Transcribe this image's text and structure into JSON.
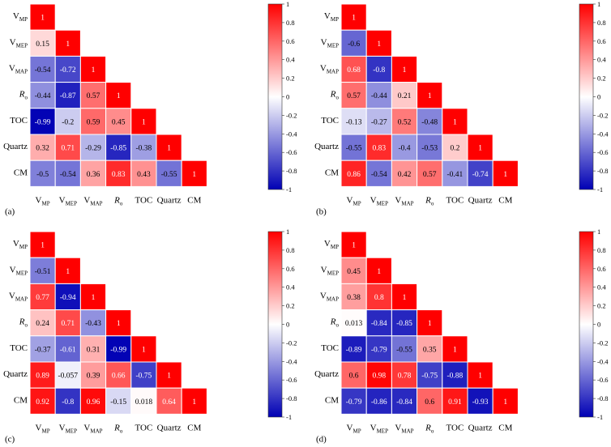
{
  "colors": {
    "neg": "#0000b4",
    "mid": "#ffffff",
    "pos": "#ff0000",
    "grid": "#ffffff"
  },
  "chart_data": [
    {
      "type": "heatmap",
      "panel_label": "(a)",
      "variables": [
        "V_MP",
        "V_MEP",
        "V_MAP",
        "R_o",
        "TOC",
        "Quartz",
        "CM"
      ],
      "matrix_lower": [
        [
          1
        ],
        [
          0.15,
          1
        ],
        [
          -0.54,
          -0.72,
          1
        ],
        [
          -0.44,
          -0.87,
          0.57,
          1
        ],
        [
          -0.99,
          -0.2,
          0.59,
          0.45,
          1
        ],
        [
          0.32,
          0.71,
          -0.29,
          -0.85,
          -0.38,
          1
        ],
        [
          -0.5,
          -0.54,
          0.36,
          0.83,
          0.43,
          -0.55,
          1
        ]
      ],
      "labels": [
        [
          "1"
        ],
        [
          "0.15",
          "1"
        ],
        [
          "-0.54",
          "-0.72",
          "1"
        ],
        [
          "-0.44",
          "-0.87",
          "0.57",
          "1"
        ],
        [
          "-0.99",
          "-0.2",
          "0.59",
          "0.45",
          "1"
        ],
        [
          "0.32",
          "0.71",
          "-0.29",
          "-0.85",
          "-0.38",
          "1"
        ],
        [
          "-0.5",
          "-0.54",
          "0.36",
          "0.83",
          "0.43",
          "-0.55",
          "1"
        ]
      ],
      "colorbar": {
        "range": [
          -1,
          1
        ],
        "ticks": [
          "1",
          "0.8",
          "0.6",
          "0.4",
          "0.2",
          "0",
          "-0.2",
          "-0.4",
          "-0.6",
          "-0.8",
          "-1"
        ]
      }
    },
    {
      "type": "heatmap",
      "panel_label": "(b)",
      "variables": [
        "V_MP",
        "V_MEP",
        "V_MAP",
        "R_o",
        "TOC",
        "Quartz",
        "CM"
      ],
      "matrix_lower": [
        [
          1
        ],
        [
          -0.6,
          1
        ],
        [
          0.68,
          -0.8,
          1
        ],
        [
          0.57,
          -0.44,
          0.21,
          1
        ],
        [
          -0.13,
          -0.27,
          0.52,
          -0.48,
          1
        ],
        [
          -0.55,
          0.83,
          -0.4,
          -0.53,
          0.2,
          1
        ],
        [
          0.86,
          -0.54,
          0.42,
          0.57,
          -0.41,
          -0.74,
          1
        ]
      ],
      "labels": [
        [
          "1"
        ],
        [
          "-0.6",
          "1"
        ],
        [
          "0.68",
          "-0.8",
          "1"
        ],
        [
          "0.57",
          "-0.44",
          "0.21",
          "1"
        ],
        [
          "-0.13",
          "-0.27",
          "0.52",
          "-0.48",
          "1"
        ],
        [
          "-0.55",
          "0.83",
          "-0.4",
          "-0.53",
          "0.2",
          "1"
        ],
        [
          "0.86",
          "-0.54",
          "0.42",
          "0.57",
          "-0.41",
          "-0.74",
          "1"
        ]
      ],
      "colorbar": {
        "range": [
          -1,
          1
        ],
        "ticks": [
          "1",
          "0.8",
          "0.6",
          "0.4",
          "0.2",
          "0",
          "-0.2",
          "-0.4",
          "-0.6",
          "-0.8",
          "-1"
        ]
      }
    },
    {
      "type": "heatmap",
      "panel_label": "(c)",
      "variables": [
        "V_MP",
        "V_MEP",
        "V_MAP",
        "R_o",
        "TOC",
        "Quartz",
        "CM"
      ],
      "matrix_lower": [
        [
          1
        ],
        [
          -0.51,
          1
        ],
        [
          0.77,
          -0.94,
          1
        ],
        [
          0.24,
          0.71,
          -0.43,
          1
        ],
        [
          -0.37,
          -0.61,
          0.31,
          -0.99,
          1
        ],
        [
          0.89,
          -0.057,
          0.39,
          0.66,
          -0.75,
          1
        ],
        [
          0.92,
          -0.8,
          0.96,
          -0.15,
          0.018,
          0.64,
          1
        ]
      ],
      "labels": [
        [
          "1"
        ],
        [
          "-0.51",
          "1"
        ],
        [
          "0.77",
          "-0.94",
          "1"
        ],
        [
          "0.24",
          "0.71",
          "-0.43",
          "1"
        ],
        [
          "-0.37",
          "-0.61",
          "0.31",
          "-0.99",
          "1"
        ],
        [
          "0.89",
          "-0.057",
          "0.39",
          "0.66",
          "-0.75",
          "1"
        ],
        [
          "0.92",
          "-0.8",
          "0.96",
          "-0.15",
          "0.018",
          "0.64",
          "1"
        ]
      ],
      "colorbar": {
        "range": [
          -1,
          1
        ],
        "ticks": [
          "1",
          "0.8",
          "0.6",
          "0.4",
          "0.2",
          "0",
          "-0.2",
          "-0.4",
          "-0.6",
          "-0.8",
          "-1"
        ]
      }
    },
    {
      "type": "heatmap",
      "panel_label": "(d)",
      "variables": [
        "V_MP",
        "V_MEP",
        "V_MAP",
        "R_o",
        "TOC",
        "Quartz",
        "CM"
      ],
      "matrix_lower": [
        [
          1
        ],
        [
          0.45,
          1
        ],
        [
          0.38,
          0.8,
          1
        ],
        [
          0.013,
          -0.84,
          -0.85,
          1
        ],
        [
          -0.89,
          -0.79,
          -0.55,
          0.35,
          1
        ],
        [
          0.6,
          0.98,
          0.78,
          -0.75,
          -0.88,
          1
        ],
        [
          -0.79,
          -0.86,
          -0.84,
          0.6,
          0.91,
          -0.93,
          1
        ]
      ],
      "labels": [
        [
          "1"
        ],
        [
          "0.45",
          "1"
        ],
        [
          "0.38",
          "0.8",
          "1"
        ],
        [
          "0.013",
          "-0.84",
          "-0.85",
          "1"
        ],
        [
          "-0.89",
          "-0.79",
          "-0.55",
          "0.35",
          "1"
        ],
        [
          "0.6",
          "0.98",
          "0.78",
          "-0.75",
          "-0.88",
          "1"
        ],
        [
          "-0.79",
          "-0.86",
          "-0.84",
          "0.6",
          "0.91",
          "-0.93",
          "1"
        ]
      ],
      "colorbar": {
        "range": [
          -1,
          1
        ],
        "ticks": [
          "1",
          "0.8",
          "0.6",
          "0.4",
          "0.2",
          "0",
          "-0.2",
          "-0.4",
          "-0.6",
          "-0.8",
          "-1"
        ]
      }
    }
  ],
  "axis_labels": {
    "V_MP": {
      "main": "V",
      "sub": "MP",
      "style": "normal"
    },
    "V_MEP": {
      "main": "V",
      "sub": "MEP",
      "style": "normal"
    },
    "V_MAP": {
      "main": "V",
      "sub": "MAP",
      "style": "normal"
    },
    "R_o": {
      "main": "R",
      "sub": "o",
      "style": "italic"
    },
    "TOC": {
      "main": "TOC",
      "sub": "",
      "style": "normal"
    },
    "Quartz": {
      "main": "Quartz",
      "sub": "",
      "style": "normal"
    },
    "CM": {
      "main": "CM",
      "sub": "",
      "style": "normal"
    }
  }
}
